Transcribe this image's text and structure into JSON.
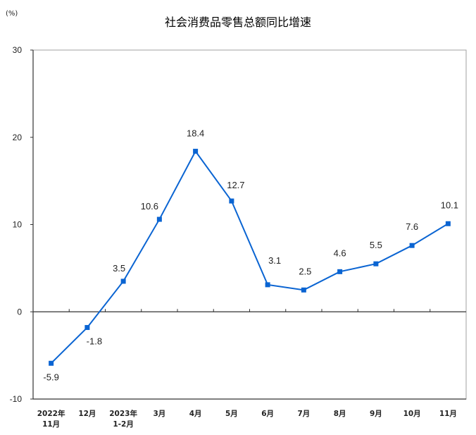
{
  "chart_data": {
    "type": "line",
    "title": "社会消费品零售总额同比增速",
    "unit_label": "(%)",
    "xlabel": "",
    "ylabel": "(%)",
    "ylim": [
      -10,
      30
    ],
    "yticks": [
      30,
      20,
      10,
      0,
      -10
    ],
    "grid": false,
    "legend": null,
    "categories": [
      [
        "2022年",
        "11月"
      ],
      [
        "12月"
      ],
      [
        "2023年",
        "1-2月"
      ],
      [
        "3月"
      ],
      [
        "4月"
      ],
      [
        "5月"
      ],
      [
        "6月"
      ],
      [
        "7月"
      ],
      [
        "8月"
      ],
      [
        "9月"
      ],
      [
        "10月"
      ],
      [
        "11月"
      ]
    ],
    "series": [
      {
        "name": "社会消费品零售总额同比增速",
        "color": "#0a64d2",
        "values": [
          -5.9,
          -1.8,
          3.5,
          10.6,
          18.4,
          12.7,
          3.1,
          2.5,
          4.6,
          5.5,
          7.6,
          10.1
        ],
        "labels": [
          "-5.9",
          "-1.8",
          "3.5",
          "10.6",
          "18.4",
          "12.7",
          "3.1",
          "2.5",
          "4.6",
          "5.5",
          "7.6",
          "10.1"
        ]
      }
    ]
  }
}
